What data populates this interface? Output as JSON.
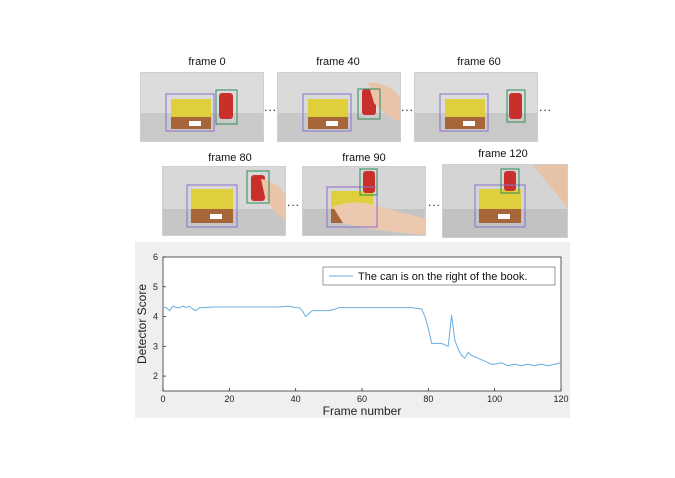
{
  "frames": [
    {
      "label": "frame 0"
    },
    {
      "label": "frame 40"
    },
    {
      "label": "frame 60"
    },
    {
      "label": "frame 80"
    },
    {
      "label": "frame 90"
    },
    {
      "label": "frame 120"
    }
  ],
  "ellipsis": "...",
  "colors": {
    "line": "#6aaee0",
    "book_box": "#8b6fc9",
    "can_box": "#2e8b57",
    "panel_bg": "#efefef"
  },
  "chart_data": {
    "type": "line",
    "title": "",
    "xlabel": "Frame number",
    "ylabel": "Detector Score",
    "xlim": [
      0,
      120
    ],
    "ylim": [
      1.5,
      6
    ],
    "xticks": [
      0,
      20,
      40,
      60,
      80,
      100,
      120
    ],
    "yticks": [
      2,
      3,
      4,
      5,
      6
    ],
    "legend_position": "top-right",
    "grid": false,
    "series": [
      {
        "name": "The can is on the right of the book.",
        "x": [
          0,
          1,
          2,
          3,
          4,
          5,
          6,
          7,
          8,
          9,
          10,
          11,
          12,
          15,
          20,
          25,
          30,
          35,
          38,
          40,
          41,
          42,
          43,
          44,
          45,
          47,
          50,
          52,
          53,
          55,
          60,
          65,
          70,
          75,
          78,
          79,
          80,
          81,
          82,
          84,
          86,
          87,
          88,
          89,
          90,
          91,
          92,
          93,
          95,
          97,
          99,
          100,
          102,
          104,
          106,
          108,
          110,
          112,
          114,
          116,
          118,
          120
        ],
        "values": [
          4.3,
          4.3,
          4.2,
          4.35,
          4.3,
          4.3,
          4.35,
          4.3,
          4.35,
          4.25,
          4.2,
          4.3,
          4.3,
          4.32,
          4.32,
          4.32,
          4.32,
          4.32,
          4.35,
          4.3,
          4.3,
          4.2,
          4.0,
          4.1,
          4.2,
          4.2,
          4.2,
          4.25,
          4.3,
          4.3,
          4.3,
          4.3,
          4.3,
          4.3,
          4.25,
          4.0,
          3.6,
          3.1,
          3.1,
          3.1,
          3.0,
          4.05,
          3.2,
          2.9,
          2.7,
          2.6,
          2.8,
          2.7,
          2.6,
          2.5,
          2.4,
          2.4,
          2.45,
          2.35,
          2.4,
          2.35,
          2.4,
          2.35,
          2.4,
          2.35,
          2.4,
          2.45
        ]
      }
    ]
  }
}
